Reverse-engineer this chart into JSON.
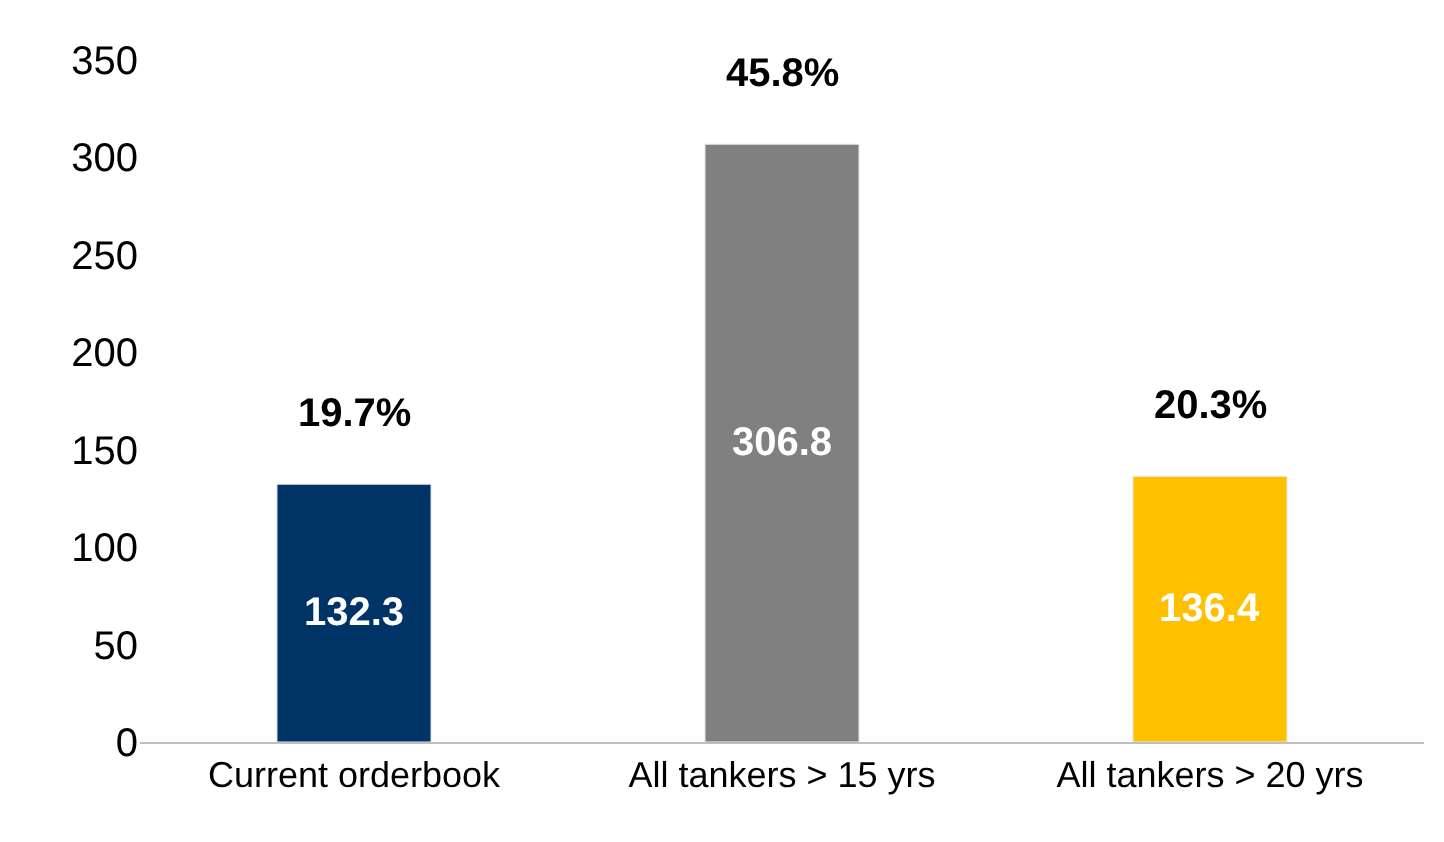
{
  "chart_data": {
    "type": "bar",
    "categories": [
      "Current orderbook",
      "All tankers > 15 yrs",
      "All tankers > 20 yrs"
    ],
    "values": [
      132.3,
      306.8,
      136.4
    ],
    "colors": [
      "#003366",
      "#808080",
      "#ffc000"
    ],
    "ylim": [
      0,
      350
    ],
    "yticks": [
      0,
      50,
      100,
      150,
      200,
      250,
      300,
      350
    ],
    "legend": false,
    "data_labels": true,
    "annotations": [
      {
        "text": "19.7%",
        "x": "Current orderbook",
        "y": 132.3
      },
      {
        "text": "45.8%",
        "x": "All tankers > 15 yrs",
        "y": 306.8
      },
      {
        "text": "20.3%",
        "x": "All tankers > 20 yrs",
        "y": 136.4
      }
    ]
  }
}
